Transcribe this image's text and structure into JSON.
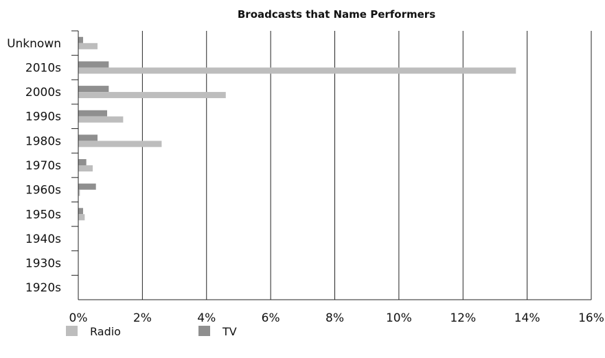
{
  "chart_data": {
    "type": "bar",
    "orientation": "horizontal",
    "title": "Broadcasts that Name Performers",
    "xlabel": "",
    "ylabel": "",
    "categories": [
      "1920s",
      "1930s",
      "1940s",
      "1950s",
      "1960s",
      "1970s",
      "1980s",
      "1990s",
      "2000s",
      "2010s",
      "Unknown"
    ],
    "series": [
      {
        "name": "Radio",
        "color": "#bdbdbd",
        "values": [
          0,
          0,
          0,
          0.2,
          0.05,
          0.45,
          2.6,
          1.4,
          4.6,
          13.65,
          0.6
        ]
      },
      {
        "name": "TV",
        "color": "#8f8f8f",
        "values": [
          0,
          0,
          0,
          0.15,
          0.55,
          0.25,
          0.6,
          0.9,
          0.95,
          0.95,
          0.15
        ]
      }
    ],
    "x_ticks": [
      "0%",
      "2%",
      "4%",
      "6%",
      "8%",
      "10%",
      "12%",
      "14%",
      "16%"
    ],
    "xlim": [
      0,
      16
    ],
    "unit": "%",
    "grid": "vertical major gridlines",
    "legend": "bottom-left"
  }
}
